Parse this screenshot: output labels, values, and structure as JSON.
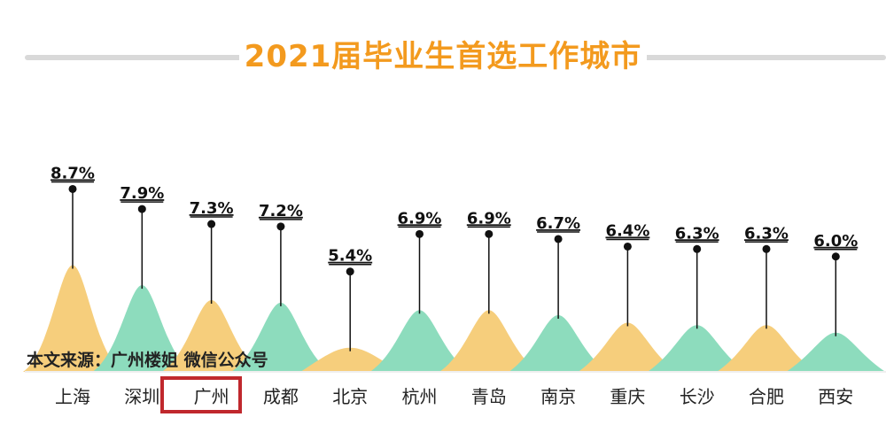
{
  "title": "2021届毕业生首选工作城市",
  "source_note": "本文来源：广州楼姐 微信公众号",
  "highlighted_category": "广州",
  "colors": {
    "title": "#f39a1e",
    "orange": "#f6ce7c",
    "green": "#8ddcbd",
    "highlight": "#c0282d"
  },
  "chart_data": {
    "type": "bar",
    "categories": [
      "上海",
      "深圳",
      "广州",
      "成都",
      "北京",
      "杭州",
      "青岛",
      "南京",
      "重庆",
      "长沙",
      "合肥",
      "西安"
    ],
    "values": [
      8.7,
      7.9,
      7.3,
      7.2,
      5.4,
      6.9,
      6.9,
      6.7,
      6.4,
      6.3,
      6.3,
      6.0
    ],
    "labels": [
      "8.7%",
      "7.9%",
      "7.3%",
      "7.2%",
      "5.4%",
      "6.9%",
      "6.9%",
      "6.7%",
      "6.4%",
      "6.3%",
      "6.3%",
      "6.0%"
    ],
    "bar_colors": [
      "orange",
      "green",
      "orange",
      "green",
      "orange",
      "green",
      "orange",
      "green",
      "orange",
      "green",
      "orange",
      "green"
    ],
    "unit": "%",
    "title": "2021届毕业生首选工作城市",
    "xlabel": "",
    "ylabel": "",
    "grid": false,
    "legend": "none"
  }
}
